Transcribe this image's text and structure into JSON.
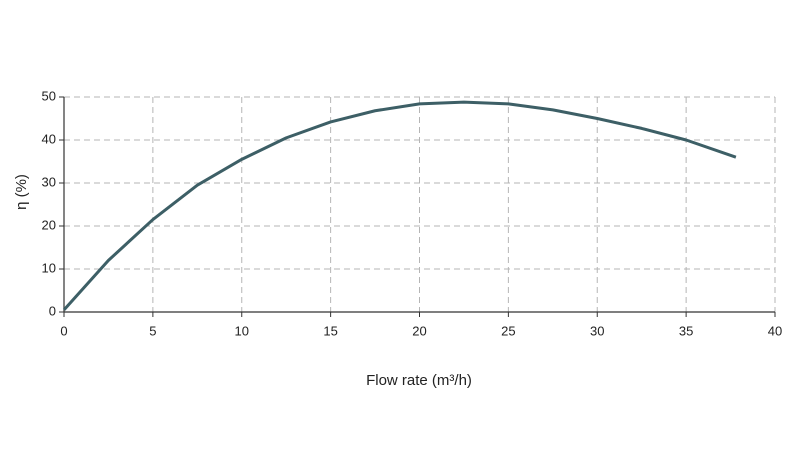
{
  "chart_data": {
    "type": "line",
    "x_label": "Flow rate (m³/h)",
    "y_label": "η (%)",
    "series": [
      {
        "name": "η",
        "color": "#3d5f66",
        "x": [
          0,
          2.5,
          5,
          7.5,
          10,
          12.5,
          15,
          17.5,
          20,
          22.5,
          25,
          27.5,
          30,
          32.5,
          35,
          37.8
        ],
        "values": [
          0.5,
          12,
          21.5,
          29.5,
          35.5,
          40.5,
          44.2,
          46.8,
          48.4,
          48.8,
          48.4,
          47,
          45,
          42.7,
          40,
          36
        ]
      }
    ],
    "xlim": [
      0,
      40
    ],
    "xticks": [
      0,
      5,
      10,
      15,
      20,
      25,
      30,
      35,
      40
    ],
    "ylim": [
      0,
      50
    ],
    "yticks": [
      0,
      10,
      20,
      30,
      40,
      50
    ],
    "grid": true
  }
}
